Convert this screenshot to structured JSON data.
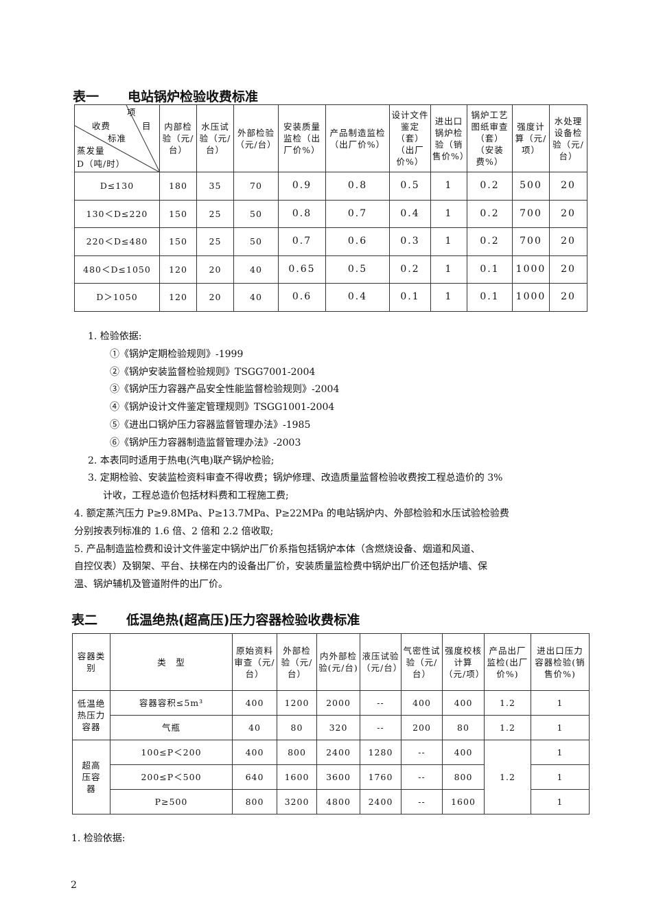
{
  "table1": {
    "title_no": "表一",
    "title": "电站锅炉检验收费标准",
    "corner": {
      "item": "项",
      "item2": "目",
      "fee": "收费",
      "std": "标准",
      "evap": "蒸发量",
      "unit": "D（吨/时）"
    },
    "headers": [
      "内部检验（元/台）",
      "水压试验（元/台）",
      "外部检验（元/台）",
      "安装质量监检（出厂价%）",
      "产品制造监检（出厂价%）",
      "设计文件鉴定（套）（出厂价%）",
      "进出口锅炉检验（销售价%）",
      "锅炉工艺图纸审查（套）（安装费%）",
      "强度计算（元/项）",
      "水处理设备检验（元/台）"
    ],
    "rows": [
      [
        "D≤130",
        "180",
        "35",
        "70",
        "0.9",
        "0.8",
        "0.5",
        "1",
        "0.2",
        "500",
        "20"
      ],
      [
        "130＜D≤220",
        "150",
        "25",
        "50",
        "0.8",
        "0.7",
        "0.4",
        "1",
        "0.2",
        "700",
        "20"
      ],
      [
        "220＜D≤480",
        "150",
        "25",
        "50",
        "0.7",
        "0.6",
        "0.3",
        "1",
        "0.2",
        "700",
        "20"
      ],
      [
        "480＜D≤1050",
        "120",
        "20",
        "40",
        "0.65",
        "0.5",
        "0.2",
        "1",
        "0.1",
        "1000",
        "20"
      ],
      [
        "D＞1050",
        "120",
        "20",
        "40",
        "0.6",
        "0.4",
        "0.1",
        "1",
        "0.1",
        "1000",
        "20"
      ]
    ]
  },
  "notes": [
    "1. 检验依据:",
    "①《锅炉定期检验规则》-1999",
    "②《锅炉安装监督检验规则》TSGG7001-2004",
    "③《锅炉压力容器产品安全性能监督检验规则》-2004",
    "④《锅炉设计文件鉴定管理规则》TSGG1001-2004",
    "⑤《进出口锅炉压力容器监督管理办法》-1985",
    "⑥《锅炉压力容器制造监督管理办法》-2003",
    "2. 本表同时适用于热电(汽电)联产锅炉检验;",
    "3. 定期检验、安装监检资料审查不得收费；锅炉修理、改造质量监督检验收费按工程总造价的 3%",
    "计收，工程总造价包括材料费和工程施工费;",
    "4. 额定蒸汽压力 P≥9.8MPa、P≥13.7MPa、P≥22MPa 的电站锅炉内、外部检验和水压试验检验费",
    "分别按表列标准的 1.6 倍、2 倍和 2.2 倍收取;",
    "5. 产品制造监检费和设计文件鉴定中锅炉出厂价系指包括锅炉本体（含燃烧设备、烟道和风道、",
    "自控仪表）及钢架、平台、扶梯在内的设备出厂价，安装质量监检费中锅炉出厂价还包括炉墙、保",
    "温、锅炉辅机及管道附件的出厂价。"
  ],
  "table2": {
    "title_no": "表二",
    "title": "低温绝热(超高压)压力容器检验收费标准",
    "headers": [
      "容器类别",
      "类　型",
      "原始资料审查（元/台）",
      "外部检验（元/台）",
      "内外部检验(元/台)",
      "液压试验（元/台）",
      "气密性试验（元/台）",
      "强度校核计算（元/项）",
      "产品出厂监检(出厂价%)",
      "进出口压力容器检验(销售价%)"
    ],
    "group1": "低温绝热压力容器",
    "group2": "超高压容器",
    "rows": [
      [
        "容器容积≤5m³",
        "400",
        "1200",
        "2000",
        "--",
        "400",
        "400",
        "1.2",
        "1"
      ],
      [
        "气瓶",
        "40",
        "80",
        "320",
        "--",
        "200",
        "80",
        "1.2",
        "1"
      ],
      [
        "100≤P＜200",
        "400",
        "800",
        "2400",
        "1280",
        "--",
        "400",
        "1.2",
        "1"
      ],
      [
        "200≤P＜500",
        "640",
        "1600",
        "3600",
        "1760",
        "--",
        "800",
        "",
        "1"
      ],
      [
        "P≥500",
        "800",
        "3200",
        "4800",
        "2400",
        "--",
        "1600",
        "",
        "1"
      ]
    ]
  },
  "footer_note": "1. 检验依据:",
  "page_number": "2"
}
